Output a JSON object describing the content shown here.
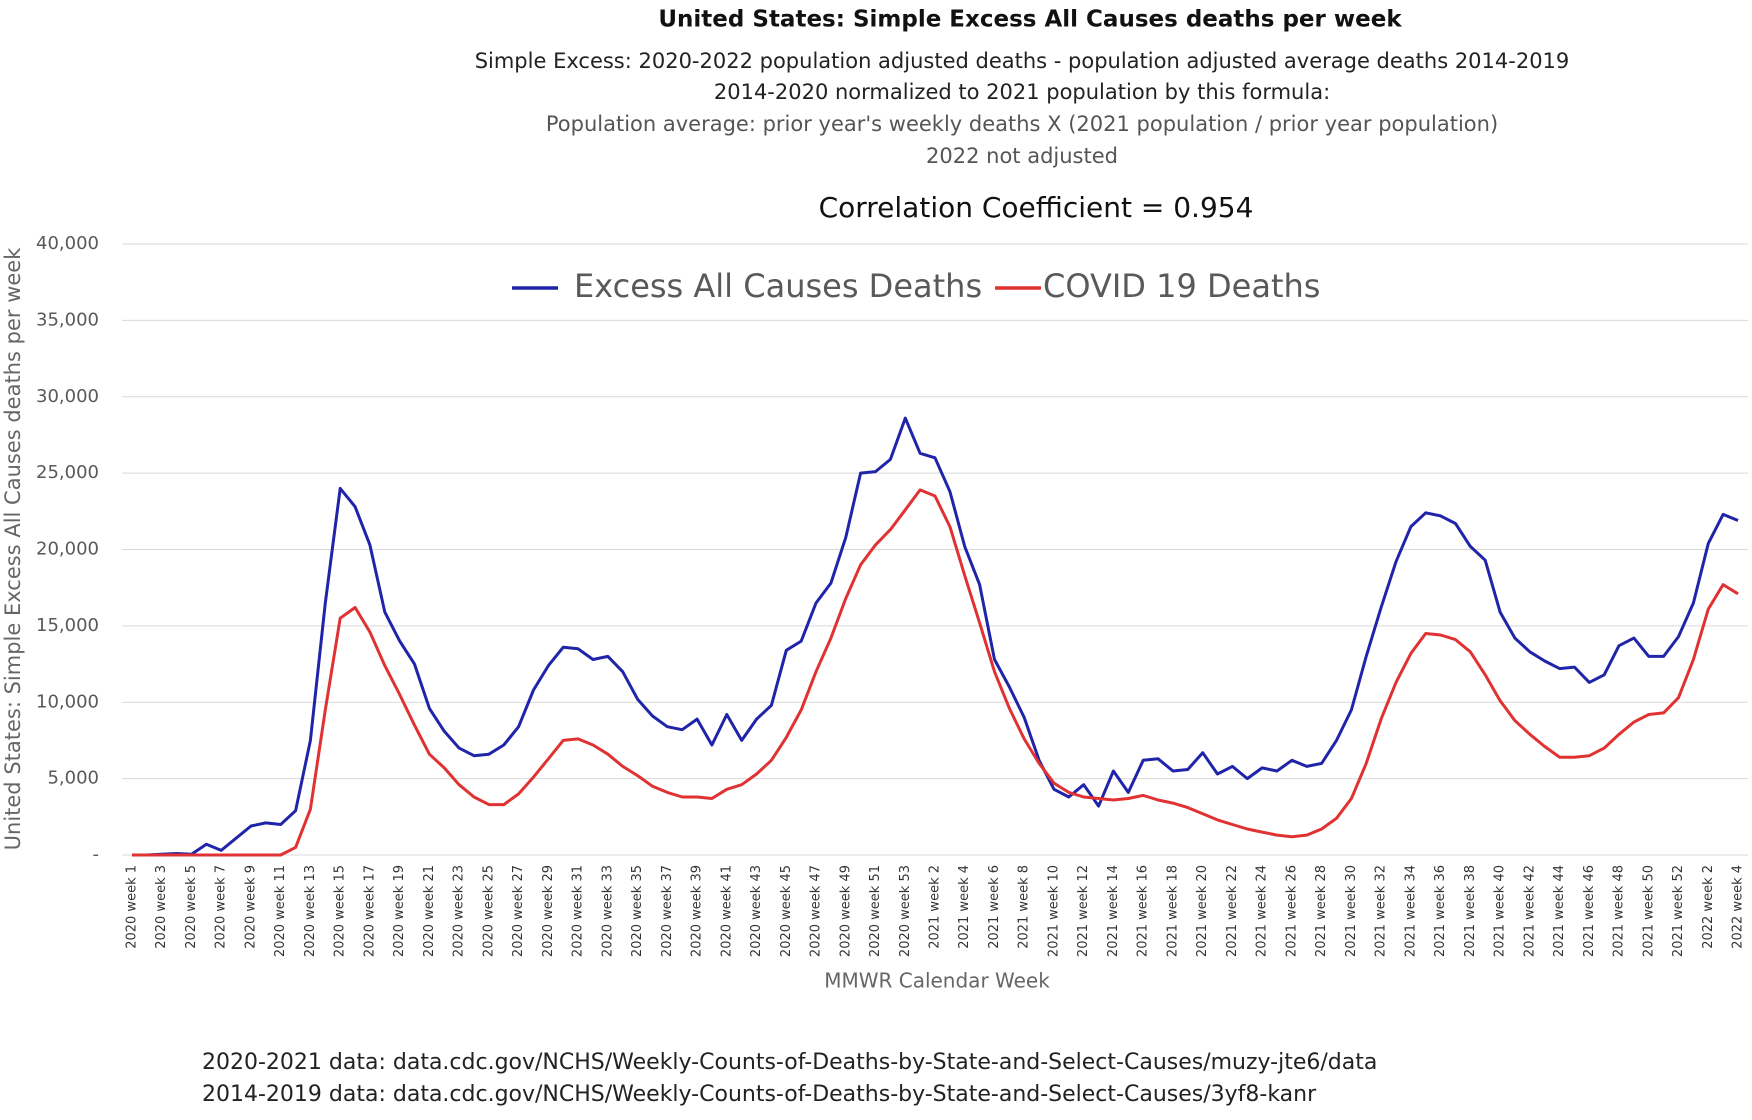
{
  "chart_data": {
    "type": "line",
    "title": "United States: Simple Excess All Causes deaths per week",
    "subtitles": [
      "Simple Excess: 2020-2022 population adjusted deaths - population adjusted average deaths 2014-2019",
      "2014-2020 normalized to 2021 population by this formula:",
      "Population average: prior year's weekly deaths  X (2021 population / prior year population)",
      "2022 not adjusted"
    ],
    "annotation": "Correlation Coefficient = 0.954",
    "xlabel": "MMWR Calendar Week",
    "ylabel": "United States: Simple Excess All Causes deaths per week",
    "notes": [
      "2020-2021 data: data.cdc.gov/NCHS/Weekly-Counts-of-Deaths-by-State-and-Select-Causes/muzy-jte6/data",
      "2014-2019 data: data.cdc.gov/NCHS/Weekly-Counts-of-Deaths-by-State-and-Select-Causes/3yf8-kanr"
    ],
    "categories": [
      "2020 week 1",
      null,
      "2020 week 3",
      null,
      "2020 week 5",
      null,
      "2020 week 7",
      null,
      "2020 week 9",
      null,
      "2020 week 11",
      null,
      "2020 week 13",
      null,
      "2020 week 15",
      null,
      "2020 week 17",
      null,
      "2020 week 19",
      null,
      "2020 week 21",
      null,
      "2020 week 23",
      null,
      "2020 week 25",
      null,
      "2020 week 27",
      null,
      "2020 week 29",
      null,
      "2020 week 31",
      null,
      "2020 week 33",
      null,
      "2020 week 35",
      null,
      "2020 week 37",
      null,
      "2020 week 39",
      null,
      "2020 week 41",
      null,
      "2020 week 43",
      null,
      "2020 week 45",
      null,
      "2020 week 47",
      null,
      "2020 week 49",
      null,
      "2020 week 51",
      null,
      "2020 week 53",
      null,
      "2021 week 2",
      null,
      "2021 week 4",
      null,
      "2021 week 6",
      null,
      "2021 week 8",
      null,
      "2021 week 10",
      null,
      "2021 week 12",
      null,
      "2021 week 14",
      null,
      "2021 week 16",
      null,
      "2021 week 18",
      null,
      "2021 week 20",
      null,
      "2021 week 22",
      null,
      "2021 week 24",
      null,
      "2021 week 26",
      null,
      "2021 week 28",
      null,
      "2021 week 30",
      null,
      "2021 week 32",
      null,
      "2021 week 34",
      null,
      "2021 week 36",
      null,
      "2021 week 38",
      null,
      "2021 week 40",
      null,
      "2021 week 42",
      null,
      "2021 week 44",
      null,
      "2021 week 46",
      null,
      "2021 week 48",
      null,
      "2021 week 50",
      null,
      "2021 week 52",
      null,
      "2022 week 2",
      null,
      "2022 week 4"
    ],
    "series": [
      {
        "name": "Excess All Causes Deaths",
        "color": "#1f24a8",
        "values": [
          0,
          0,
          50,
          100,
          50,
          700,
          300,
          1100,
          1900,
          2100,
          2000,
          2900,
          7500,
          16500,
          24000,
          22800,
          20300,
          15900,
          14000,
          12500,
          9600,
          8100,
          7000,
          6500,
          6600,
          7200,
          8400,
          10800,
          12400,
          13600,
          13500,
          12800,
          13000,
          12000,
          10200,
          9100,
          8400,
          8200,
          8900,
          7200,
          9200,
          7500,
          8900,
          9800,
          13400,
          14000,
          16500,
          17800,
          20800,
          25000,
          25100,
          25900,
          28600,
          26300,
          26000,
          23800,
          20200,
          17700,
          12800,
          11000,
          9000,
          6200,
          4300,
          3800,
          4600,
          3200,
          5500,
          4100,
          6200,
          6300,
          5500,
          5600,
          6700,
          5300,
          5800,
          5000,
          5700,
          5500,
          6200,
          5800,
          6000,
          7500,
          9500,
          13000,
          16200,
          19200,
          21500,
          22400,
          22200,
          21700,
          20200,
          19300,
          15900,
          14200,
          13300,
          12700,
          12200,
          12300,
          11300,
          11800,
          13700,
          14200,
          13000,
          13000,
          14300,
          16500,
          20400,
          22300,
          21900
        ]
      },
      {
        "name": "COVID 19 Deaths",
        "color": "#e03232",
        "values": [
          0,
          0,
          0,
          0,
          0,
          0,
          0,
          0,
          0,
          0,
          0,
          500,
          3000,
          9500,
          15500,
          16200,
          14600,
          12400,
          10500,
          8500,
          6600,
          5700,
          4600,
          3800,
          3300,
          3300,
          4000,
          5100,
          6300,
          7500,
          7600,
          7200,
          6600,
          5800,
          5200,
          4500,
          4100,
          3800,
          3800,
          3700,
          4300,
          4600,
          5300,
          6200,
          7700,
          9500,
          12000,
          14200,
          16800,
          19000,
          20300,
          21300,
          22600,
          23900,
          23500,
          21500,
          18300,
          15200,
          12000,
          9600,
          7600,
          6000,
          4700,
          4100,
          3800,
          3700,
          3600,
          3700,
          3900,
          3600,
          3400,
          3100,
          2700,
          2300,
          2000,
          1700,
          1500,
          1300,
          1200,
          1300,
          1700,
          2400,
          3700,
          6000,
          8900,
          11300,
          13200,
          14500,
          14400,
          14100,
          13300,
          11800,
          10100,
          8800,
          7900,
          7100,
          6400,
          6400,
          6500,
          7000,
          7900,
          8700,
          9200,
          9300,
          10300,
          12800,
          16100,
          17700,
          17100
        ]
      }
    ],
    "ylim": [
      0,
      40000
    ],
    "yticks": [
      {
        "value": 0,
        "label": "-"
      },
      {
        "value": 5000,
        "label": "5,000"
      },
      {
        "value": 10000,
        "label": "10,000"
      },
      {
        "value": 15000,
        "label": "15,000"
      },
      {
        "value": 20000,
        "label": "20,000"
      },
      {
        "value": 25000,
        "label": "25,000"
      },
      {
        "value": 30000,
        "label": "30,000"
      },
      {
        "value": 35000,
        "label": "35,000"
      },
      {
        "value": 40000,
        "label": "40,000"
      }
    ],
    "grid": true,
    "legend": "top"
  }
}
